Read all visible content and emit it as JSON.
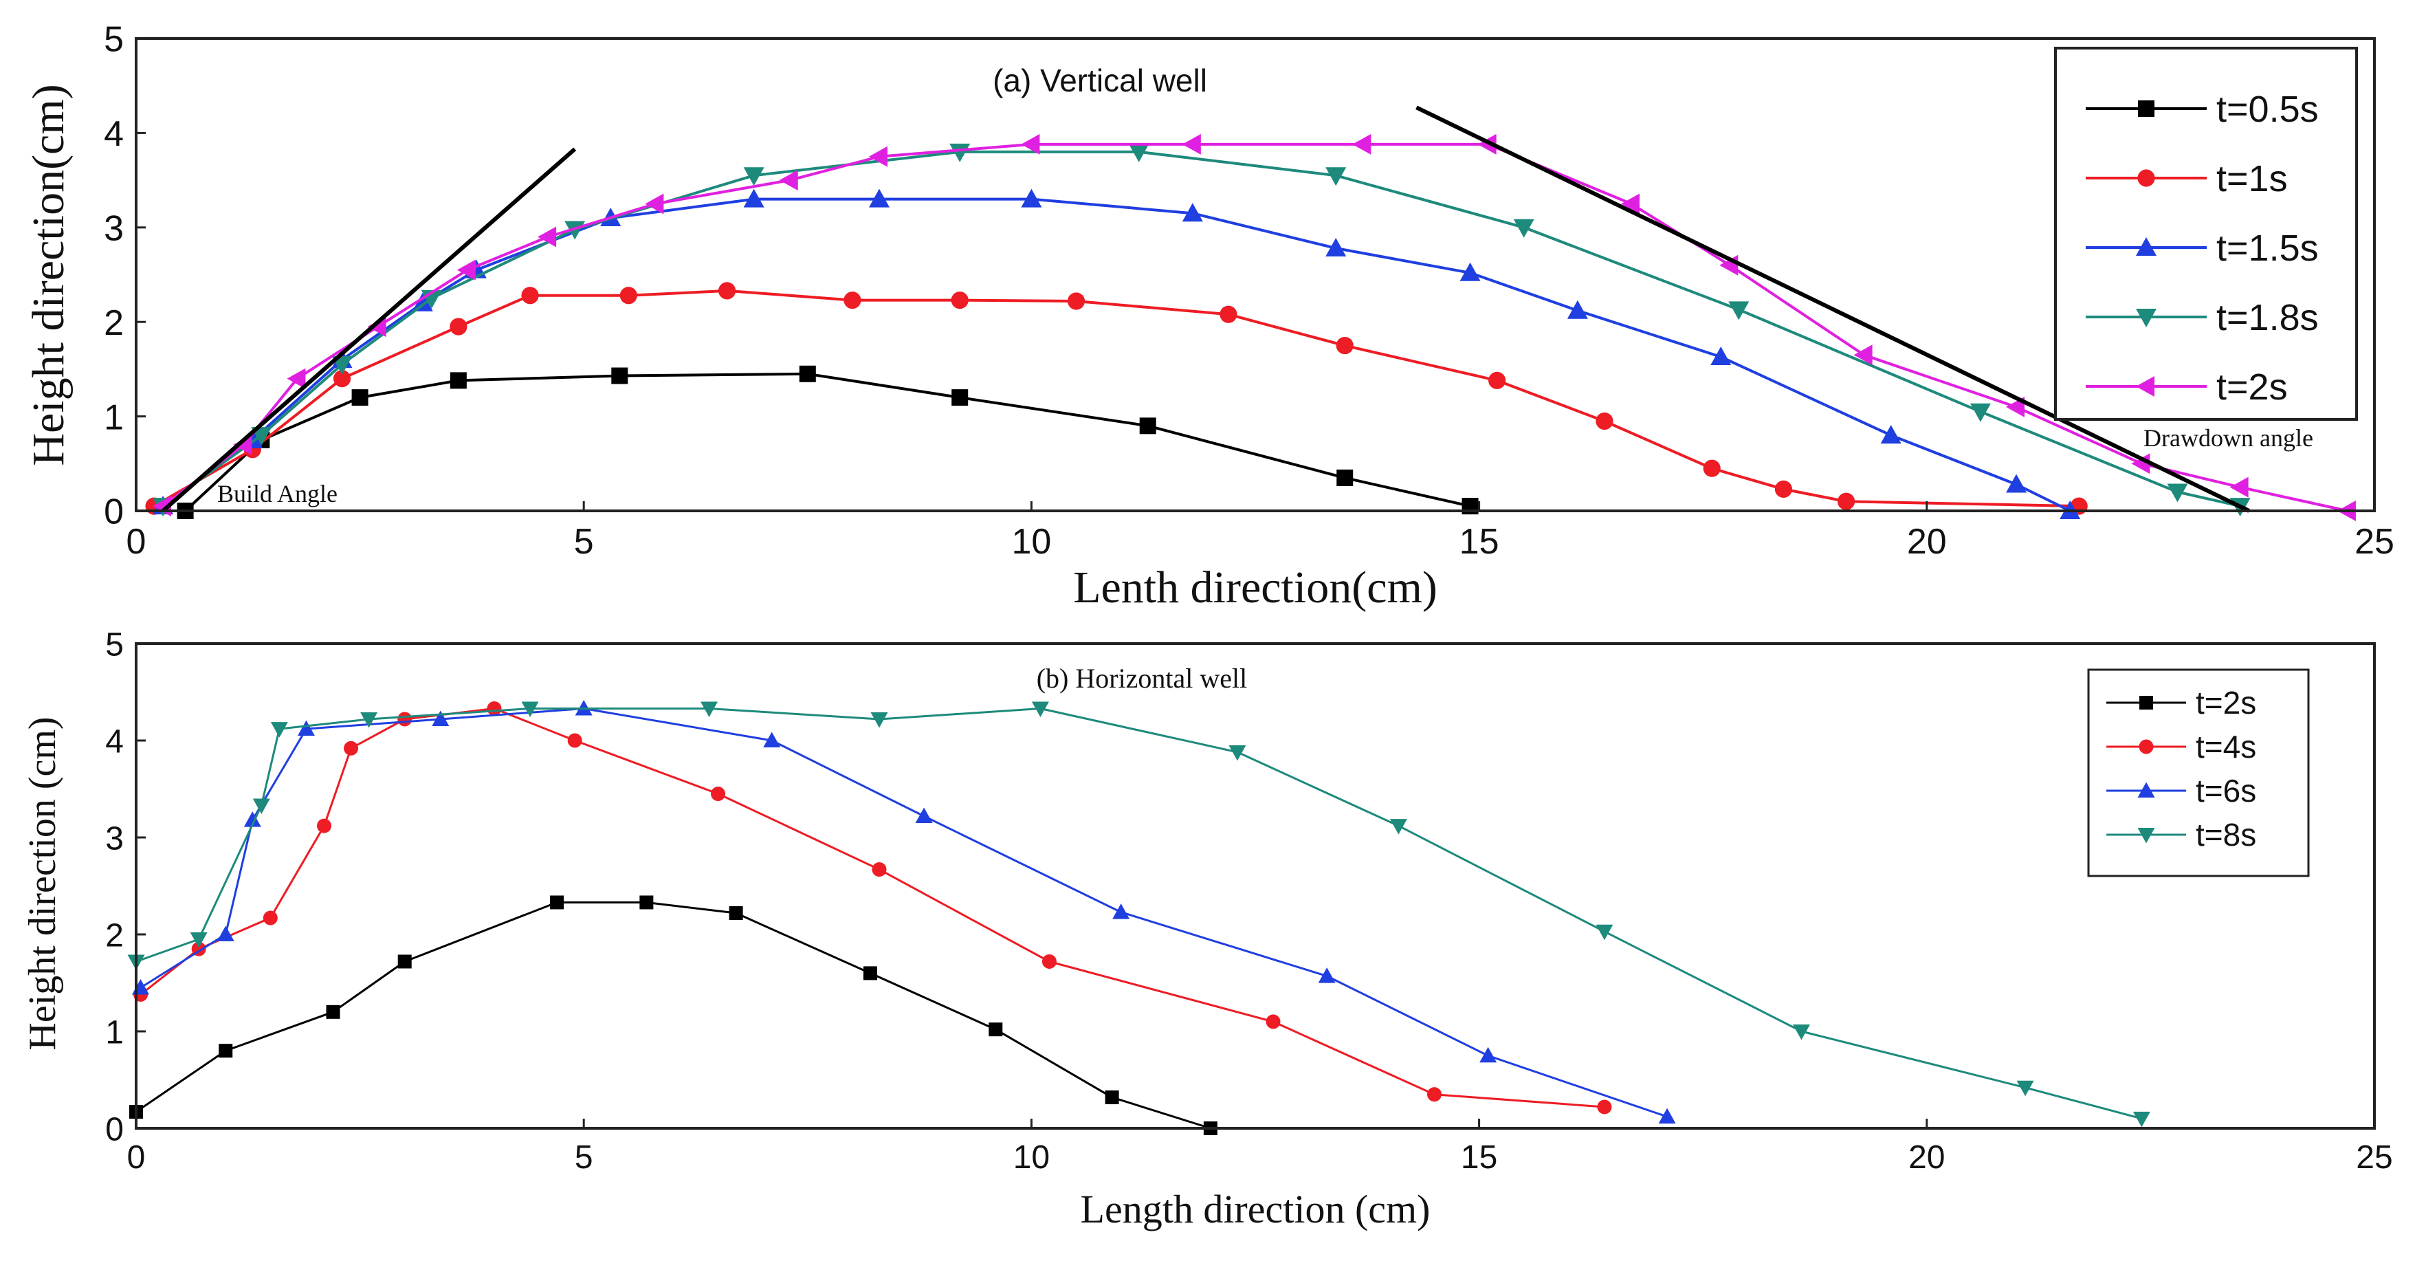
{
  "chart_data": [
    {
      "id": "a",
      "type": "line",
      "title": "(a)  Vertical well",
      "xlabel": "Lenth direction(cm)",
      "ylabel": "Height direction(cm)",
      "xlim": [
        0,
        25
      ],
      "ylim": [
        0,
        5
      ],
      "xticks": [
        "0",
        "5",
        "10",
        "15",
        "20",
        "25"
      ],
      "yticks": [
        "0",
        "1",
        "2",
        "3",
        "4",
        "5"
      ],
      "legend_position": "top-right",
      "grid": false,
      "series": [
        {
          "name": "t=0.5s",
          "color": "#000000",
          "marker": "square",
          "x": [
            0.55,
            1.4,
            2.5,
            3.6,
            5.4,
            7.5,
            9.2,
            11.3,
            13.5,
            14.9
          ],
          "y": [
            0.0,
            0.75,
            1.2,
            1.38,
            1.43,
            1.45,
            1.2,
            0.9,
            0.35,
            0.05
          ]
        },
        {
          "name": "t=1s",
          "color": "#ee1c24",
          "marker": "circle",
          "x": [
            0.2,
            1.3,
            2.3,
            3.6,
            4.4,
            5.5,
            6.6,
            8.0,
            9.2,
            10.5,
            12.2,
            13.5,
            15.2,
            16.4,
            17.6,
            18.4,
            19.1,
            21.7
          ],
          "y": [
            0.05,
            0.65,
            1.4,
            1.95,
            2.28,
            2.28,
            2.33,
            2.23,
            2.23,
            2.22,
            2.08,
            1.75,
            1.38,
            0.95,
            0.45,
            0.23,
            0.1,
            0.05
          ]
        },
        {
          "name": "t=1.5s",
          "color": "#1f3fe0",
          "marker": "triangle-up",
          "x": [
            0.3,
            1.3,
            2.3,
            3.2,
            3.8,
            5.3,
            6.9,
            8.3,
            10.0,
            11.8,
            13.4,
            14.9,
            16.1,
            17.7,
            19.6,
            21.0,
            21.6
          ],
          "y": [
            0.05,
            0.75,
            1.6,
            2.2,
            2.55,
            3.1,
            3.3,
            3.3,
            3.3,
            3.15,
            2.78,
            2.52,
            2.12,
            1.63,
            0.8,
            0.28,
            0.0
          ]
        },
        {
          "name": "t=1.8s",
          "color": "#1d8a7c",
          "marker": "triangle-down",
          "x": [
            0.3,
            1.4,
            2.3,
            3.3,
            4.9,
            6.9,
            9.2,
            11.2,
            13.4,
            15.5,
            17.9,
            20.6,
            22.8,
            23.5
          ],
          "y": [
            0.05,
            0.8,
            1.55,
            2.25,
            2.98,
            3.55,
            3.8,
            3.8,
            3.55,
            3.0,
            2.13,
            1.05,
            0.2,
            0.05
          ]
        },
        {
          "name": "t=2s",
          "color": "#e020e0",
          "marker": "triangle-left",
          "x": [
            0.3,
            1.2,
            1.8,
            2.7,
            3.7,
            4.6,
            5.8,
            7.3,
            8.3,
            10.0,
            11.8,
            13.7,
            15.1,
            16.7,
            17.8,
            19.3,
            21.0,
            22.4,
            23.5,
            24.7
          ],
          "y": [
            0.05,
            0.7,
            1.4,
            1.95,
            2.55,
            2.9,
            3.25,
            3.5,
            3.75,
            3.88,
            3.88,
            3.88,
            3.88,
            3.25,
            2.6,
            1.65,
            1.1,
            0.5,
            0.25,
            0.0
          ]
        }
      ],
      "tangent_lines": [
        {
          "x": [
            0.3,
            4.9
          ],
          "y": [
            0.0,
            3.83
          ]
        },
        {
          "x": [
            14.3,
            23.6
          ],
          "y": [
            4.27,
            0.0
          ]
        }
      ],
      "annotations": [
        {
          "text": "Build Angle",
          "x": 0.9,
          "y": 0.15
        },
        {
          "text": "Drawdown angle",
          "x": 22.5,
          "y": 0.7
        }
      ]
    },
    {
      "id": "b",
      "type": "line",
      "title": "(b) Horizontal well",
      "xlabel": "Length direction (cm)",
      "ylabel": "Height direction (cm)",
      "xlim": [
        0,
        25
      ],
      "ylim": [
        0,
        5
      ],
      "xticks": [
        "0",
        "5",
        "10",
        "15",
        "20",
        "25"
      ],
      "yticks": [
        "0",
        "1",
        "2",
        "3",
        "4",
        "5"
      ],
      "legend_position": "top-right",
      "grid": false,
      "series": [
        {
          "name": "t=2s",
          "color": "#000000",
          "marker": "square",
          "x": [
            0.0,
            1.0,
            2.2,
            3.0,
            4.7,
            5.7,
            6.7,
            8.2,
            9.6,
            10.9,
            12.0
          ],
          "y": [
            0.17,
            0.8,
            1.2,
            1.72,
            2.33,
            2.33,
            2.22,
            1.6,
            1.02,
            0.32,
            0.0
          ]
        },
        {
          "name": "t=4s",
          "color": "#ee1c24",
          "marker": "circle",
          "x": [
            0.05,
            0.7,
            1.5,
            2.1,
            2.4,
            3.0,
            4.0,
            4.9,
            6.5,
            8.3,
            10.2,
            12.7,
            14.5,
            16.4
          ],
          "y": [
            1.38,
            1.85,
            2.17,
            3.12,
            3.92,
            4.22,
            4.33,
            4.0,
            3.45,
            2.67,
            1.72,
            1.1,
            0.35,
            0.22
          ]
        },
        {
          "name": "t=6s",
          "color": "#1f3fe0",
          "marker": "triangle-up",
          "x": [
            0.05,
            1.0,
            1.3,
            1.9,
            3.4,
            5.0,
            7.1,
            8.8,
            11.0,
            13.3,
            15.1,
            17.1
          ],
          "y": [
            1.45,
            2.0,
            3.18,
            4.12,
            4.22,
            4.33,
            4.0,
            3.22,
            2.23,
            1.57,
            0.75,
            0.12
          ]
        },
        {
          "name": "t=8s",
          "color": "#1d8a7c",
          "marker": "triangle-down",
          "x": [
            0.0,
            0.7,
            1.4,
            1.6,
            2.6,
            4.4,
            6.4,
            8.3,
            10.1,
            12.3,
            14.1,
            16.4,
            18.6,
            21.1,
            22.4
          ],
          "y": [
            1.72,
            1.95,
            3.33,
            4.12,
            4.22,
            4.33,
            4.33,
            4.22,
            4.33,
            3.88,
            3.12,
            2.03,
            1.0,
            0.42,
            0.1
          ]
        }
      ]
    }
  ]
}
